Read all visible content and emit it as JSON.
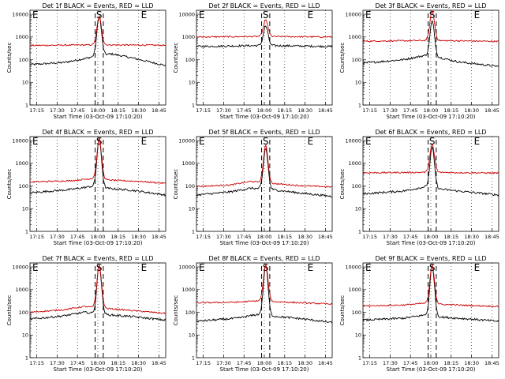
{
  "figure": {
    "background": "#ffffff",
    "events_color": "#000000",
    "lld_color": "#cc0000"
  },
  "chart_data": [
    {
      "type": "line",
      "title": "Det 1f BLACK = Events, RED = LLD",
      "xlabel": "Start Time (03-Oct-09 17:10:20)",
      "ylabel": "Counts/sec",
      "yscale": "log",
      "ylim": [
        1,
        15000
      ],
      "xlim": [
        "17:10",
        "18:50"
      ],
      "xticks": [
        "17:15",
        "17:30",
        "17:45",
        "18:00",
        "18:15",
        "18:30",
        "18:45"
      ],
      "yticks": [
        "1",
        "10",
        "100",
        "1000",
        "10000"
      ],
      "grid": "vertical dotted",
      "markers": [
        {
          "label": "E",
          "x": "17:10"
        },
        {
          "label": "S",
          "x": "18:01"
        },
        {
          "label": "E",
          "x": "18:30"
        }
      ],
      "dashed_lines": [
        "17:58",
        "18:04"
      ],
      "series": [
        {
          "name": "Events",
          "color": "#000000",
          "profile": [
            [
              0,
              60
            ],
            [
              0.25,
              75
            ],
            [
              0.4,
              110
            ],
            [
              0.5,
              150
            ],
            [
              0.6,
              180
            ],
            [
              0.75,
              120
            ],
            [
              0.9,
              75
            ],
            [
              1,
              55
            ]
          ],
          "peak": {
            "x": "18:01",
            "value": 8000
          }
        },
        {
          "name": "LLD",
          "color": "#cc0000",
          "profile": [
            [
              0,
              420
            ],
            [
              0.5,
              450
            ],
            [
              1,
              430
            ]
          ],
          "peak": {
            "x": "18:01",
            "value": 8000
          }
        }
      ]
    },
    {
      "type": "line",
      "title": "Det 2f BLACK = Events, RED = LLD",
      "xlabel": "Start Time (03-Oct-09 17:10:20)",
      "ylabel": "Counts/sec",
      "yscale": "log",
      "ylim": [
        1,
        15000
      ],
      "xlim": [
        "17:10",
        "18:50"
      ],
      "xticks": [
        "17:15",
        "17:30",
        "17:45",
        "18:00",
        "18:15",
        "18:30",
        "18:45"
      ],
      "yticks": [
        "1",
        "10",
        "100",
        "1000",
        "10000"
      ],
      "grid": "vertical dotted",
      "markers": [
        {
          "label": "E",
          "x": "17:10"
        },
        {
          "label": "S",
          "x": "18:01"
        },
        {
          "label": "E",
          "x": "18:30"
        }
      ],
      "dashed_lines": [
        "17:58",
        "18:04"
      ],
      "series": [
        {
          "name": "Events",
          "color": "#000000",
          "profile": [
            [
              0,
              380
            ],
            [
              0.5,
              420
            ],
            [
              1,
              380
            ]
          ],
          "peak": {
            "x": "18:01",
            "value": 3000
          }
        },
        {
          "name": "LLD",
          "color": "#cc0000",
          "profile": [
            [
              0,
              1000
            ],
            [
              0.5,
              1050
            ],
            [
              1,
              1000
            ]
          ],
          "peak": {
            "x": "18:01",
            "value": 5500
          }
        }
      ]
    },
    {
      "type": "line",
      "title": "Det 3f BLACK = Events, RED = LLD",
      "xlabel": "Start Time (03-Oct-09 17:10:20)",
      "ylabel": "Counts/sec",
      "yscale": "log",
      "ylim": [
        1,
        15000
      ],
      "xlim": [
        "17:10",
        "18:50"
      ],
      "xticks": [
        "17:15",
        "17:30",
        "17:45",
        "18:00",
        "18:15",
        "18:30",
        "18:45"
      ],
      "yticks": [
        "1",
        "10",
        "100",
        "1000",
        "10000"
      ],
      "grid": "vertical dotted",
      "markers": [
        {
          "label": "E",
          "x": "17:10"
        },
        {
          "label": "S",
          "x": "18:01"
        },
        {
          "label": "E",
          "x": "18:30"
        }
      ],
      "dashed_lines": [
        "17:58",
        "18:04"
      ],
      "series": [
        {
          "name": "Events",
          "color": "#000000",
          "profile": [
            [
              0,
              70
            ],
            [
              0.3,
              100
            ],
            [
              0.45,
              150
            ],
            [
              0.55,
              130
            ],
            [
              0.7,
              80
            ],
            [
              1,
              50
            ]
          ],
          "peak": {
            "x": "18:01",
            "value": 5000
          }
        },
        {
          "name": "LLD",
          "color": "#cc0000",
          "profile": [
            [
              0,
              650
            ],
            [
              0.5,
              700
            ],
            [
              1,
              640
            ]
          ],
          "peak": {
            "x": "18:01",
            "value": 14000
          }
        }
      ]
    },
    {
      "type": "line",
      "title": "Det 4f BLACK = Events, RED = LLD",
      "xlabel": "Start Time (03-Oct-09 17:10:20)",
      "ylabel": "Counts/sec",
      "yscale": "log",
      "ylim": [
        1,
        15000
      ],
      "xlim": [
        "17:10",
        "18:50"
      ],
      "xticks": [
        "17:15",
        "17:30",
        "17:45",
        "18:00",
        "18:15",
        "18:30",
        "18:45"
      ],
      "yticks": [
        "1",
        "10",
        "100",
        "1000",
        "10000"
      ],
      "grid": "vertical dotted",
      "markers": [
        {
          "label": "E",
          "x": "17:10"
        },
        {
          "label": "S",
          "x": "18:01"
        },
        {
          "label": "E",
          "x": "18:30"
        }
      ],
      "dashed_lines": [
        "17:58",
        "18:04"
      ],
      "series": [
        {
          "name": "Events",
          "color": "#000000",
          "profile": [
            [
              0,
              50
            ],
            [
              0.3,
              70
            ],
            [
              0.45,
              95
            ],
            [
              0.55,
              80
            ],
            [
              0.75,
              65
            ],
            [
              1,
              40
            ]
          ],
          "peak": {
            "x": "18:01",
            "value": 12000
          }
        },
        {
          "name": "LLD",
          "color": "#cc0000",
          "profile": [
            [
              0,
              150
            ],
            [
              0.3,
              170
            ],
            [
              0.45,
              210
            ],
            [
              0.6,
              180
            ],
            [
              0.8,
              160
            ],
            [
              1,
              130
            ]
          ],
          "peak": {
            "x": "18:01",
            "value": 12000
          }
        }
      ]
    },
    {
      "type": "line",
      "title": "Det 5f BLACK = Events, RED = LLD",
      "xlabel": "Start Time (03-Oct-09 17:10:20)",
      "ylabel": "Counts/sec",
      "yscale": "log",
      "ylim": [
        1,
        15000
      ],
      "xlim": [
        "17:10",
        "18:50"
      ],
      "xticks": [
        "17:15",
        "17:30",
        "17:45",
        "18:00",
        "18:15",
        "18:30",
        "18:45"
      ],
      "yticks": [
        "1",
        "10",
        "100",
        "1000",
        "10000"
      ],
      "grid": "vertical dotted",
      "markers": [
        {
          "label": "E",
          "x": "17:10"
        },
        {
          "label": "S",
          "x": "18:01"
        },
        {
          "label": "E",
          "x": "18:30"
        }
      ],
      "dashed_lines": [
        "17:58",
        "18:04"
      ],
      "series": [
        {
          "name": "Events",
          "color": "#000000",
          "profile": [
            [
              0,
              40
            ],
            [
              0.25,
              55
            ],
            [
              0.4,
              80
            ],
            [
              0.55,
              70
            ],
            [
              0.75,
              50
            ],
            [
              1,
              35
            ]
          ],
          "peak": {
            "x": "18:01",
            "value": 4500
          }
        },
        {
          "name": "LLD",
          "color": "#cc0000",
          "profile": [
            [
              0,
              95
            ],
            [
              0.25,
              110
            ],
            [
              0.4,
              160
            ],
            [
              0.55,
              130
            ],
            [
              0.75,
              105
            ],
            [
              1,
              90
            ]
          ],
          "peak": {
            "x": "18:01",
            "value": 6000
          }
        }
      ]
    },
    {
      "type": "line",
      "title": "Det 6f BLACK = Events, RED = LLD",
      "xlabel": "Start Time (03-Oct-09 17:10:20)",
      "ylabel": "Counts/sec",
      "yscale": "log",
      "ylim": [
        1,
        15000
      ],
      "xlim": [
        "17:10",
        "18:50"
      ],
      "xticks": [
        "17:15",
        "17:30",
        "17:45",
        "18:00",
        "18:15",
        "18:30",
        "18:45"
      ],
      "yticks": [
        "1",
        "10",
        "100",
        "1000",
        "10000"
      ],
      "grid": "vertical dotted",
      "markers": [
        {
          "label": "E",
          "x": "17:10"
        },
        {
          "label": "S",
          "x": "18:01"
        },
        {
          "label": "E",
          "x": "18:30"
        }
      ],
      "dashed_lines": [
        "17:58",
        "18:04"
      ],
      "series": [
        {
          "name": "Events",
          "color": "#000000",
          "profile": [
            [
              0,
              45
            ],
            [
              0.3,
              60
            ],
            [
              0.45,
              90
            ],
            [
              0.55,
              75
            ],
            [
              0.7,
              60
            ],
            [
              1,
              40
            ]
          ],
          "peak": {
            "x": "18:01",
            "value": 5000
          }
        },
        {
          "name": "LLD",
          "color": "#cc0000",
          "profile": [
            [
              0,
              380
            ],
            [
              0.5,
              400
            ],
            [
              1,
              370
            ]
          ],
          "peak": {
            "x": "18:01",
            "value": 6500
          }
        }
      ]
    },
    {
      "type": "line",
      "title": "Det 7f BLACK = Events, RED = LLD",
      "xlabel": "Start Time (03-Oct-09 17:10:20)",
      "ylabel": "Counts/sec",
      "yscale": "log",
      "ylim": [
        1,
        15000
      ],
      "xlim": [
        "17:10",
        "18:50"
      ],
      "xticks": [
        "17:15",
        "17:30",
        "17:45",
        "18:00",
        "18:15",
        "18:30",
        "18:45"
      ],
      "yticks": [
        "1",
        "10",
        "100",
        "1000",
        "10000"
      ],
      "grid": "vertical dotted",
      "markers": [
        {
          "label": "E",
          "x": "17:10"
        },
        {
          "label": "S",
          "x": "18:01"
        },
        {
          "label": "E",
          "x": "18:30"
        }
      ],
      "dashed_lines": [
        "17:58",
        "18:04"
      ],
      "series": [
        {
          "name": "Events",
          "color": "#000000",
          "profile": [
            [
              0,
              50
            ],
            [
              0.25,
              70
            ],
            [
              0.4,
              100
            ],
            [
              0.55,
              80
            ],
            [
              0.75,
              65
            ],
            [
              1,
              45
            ]
          ],
          "peak": {
            "x": "18:01",
            "value": 12000
          }
        },
        {
          "name": "LLD",
          "color": "#cc0000",
          "profile": [
            [
              0,
              100
            ],
            [
              0.25,
              130
            ],
            [
              0.4,
              180
            ],
            [
              0.55,
              150
            ],
            [
              0.75,
              120
            ],
            [
              1,
              90
            ]
          ],
          "peak": {
            "x": "18:01",
            "value": 12000
          }
        }
      ]
    },
    {
      "type": "line",
      "title": "Det 8f BLACK = Events, RED = LLD",
      "xlabel": "Start Time (03-Oct-09 17:10:20)",
      "ylabel": "Counts/sec",
      "yscale": "log",
      "ylim": [
        1,
        15000
      ],
      "xlim": [
        "17:10",
        "18:50"
      ],
      "xticks": [
        "17:15",
        "17:30",
        "17:45",
        "18:00",
        "18:15",
        "18:30",
        "18:45"
      ],
      "yticks": [
        "1",
        "10",
        "100",
        "1000",
        "10000"
      ],
      "grid": "vertical dotted",
      "markers": [
        {
          "label": "E",
          "x": "17:10"
        },
        {
          "label": "S",
          "x": "18:01"
        },
        {
          "label": "E",
          "x": "18:30"
        }
      ],
      "dashed_lines": [
        "17:58",
        "18:04"
      ],
      "series": [
        {
          "name": "Events",
          "color": "#000000",
          "profile": [
            [
              0,
              40
            ],
            [
              0.3,
              55
            ],
            [
              0.45,
              80
            ],
            [
              0.6,
              65
            ],
            [
              0.8,
              50
            ],
            [
              1,
              35
            ]
          ],
          "peak": {
            "x": "18:01",
            "value": 12000
          }
        },
        {
          "name": "LLD",
          "color": "#cc0000",
          "profile": [
            [
              0,
              260
            ],
            [
              0.3,
              280
            ],
            [
              0.45,
              320
            ],
            [
              0.6,
              290
            ],
            [
              1,
              230
            ]
          ],
          "peak": {
            "x": "18:01",
            "value": 12000
          }
        }
      ]
    },
    {
      "type": "line",
      "title": "Det 9f BLACK = Events, RED = LLD",
      "xlabel": "Start Time (03-Oct-09 17:10:20)",
      "ylabel": "Counts/sec",
      "yscale": "log",
      "ylim": [
        1,
        15000
      ],
      "xlim": [
        "17:10",
        "18:50"
      ],
      "xticks": [
        "17:15",
        "17:30",
        "17:45",
        "18:00",
        "18:15",
        "18:30",
        "18:45"
      ],
      "yticks": [
        "1",
        "10",
        "100",
        "1000",
        "10000"
      ],
      "grid": "vertical dotted",
      "markers": [
        {
          "label": "E",
          "x": "17:10"
        },
        {
          "label": "S",
          "x": "18:01"
        },
        {
          "label": "E",
          "x": "18:30"
        }
      ],
      "dashed_lines": [
        "17:58",
        "18:04"
      ],
      "series": [
        {
          "name": "Events",
          "color": "#000000",
          "profile": [
            [
              0,
              45
            ],
            [
              0.3,
              55
            ],
            [
              0.45,
              75
            ],
            [
              0.6,
              60
            ],
            [
              0.8,
              50
            ],
            [
              1,
              40
            ]
          ],
          "peak": {
            "x": "18:01",
            "value": 12000
          }
        },
        {
          "name": "LLD",
          "color": "#cc0000",
          "profile": [
            [
              0,
              190
            ],
            [
              0.3,
              210
            ],
            [
              0.45,
              250
            ],
            [
              0.6,
              220
            ],
            [
              1,
              180
            ]
          ],
          "peak": {
            "x": "18:01",
            "value": 12000
          }
        }
      ]
    }
  ]
}
